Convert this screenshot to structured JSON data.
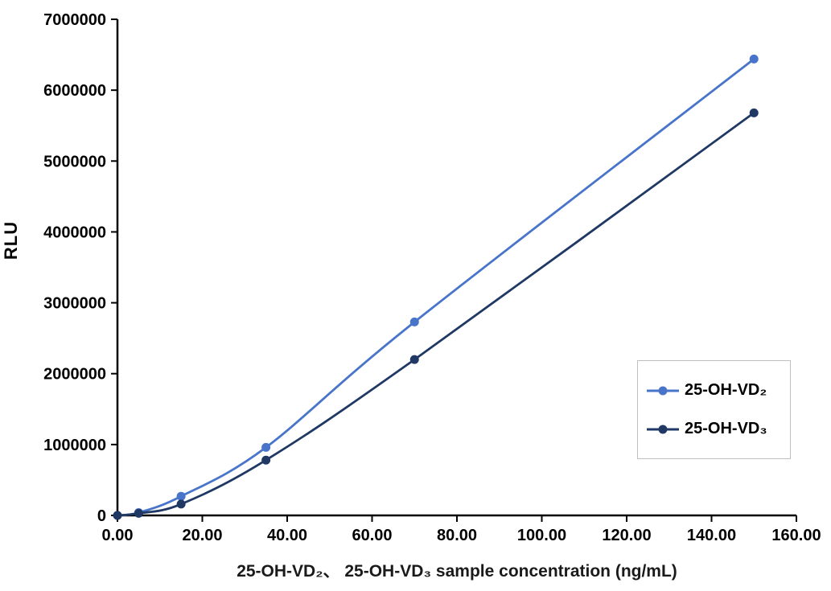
{
  "chart_data": {
    "type": "line",
    "title": "",
    "xlabel": "25-OH-VD₂、 25-OH-VD₃ sample concentration (ng/mL)",
    "ylabel": "RLU",
    "xlim": [
      0,
      160
    ],
    "ylim": [
      0,
      7000000
    ],
    "x_tick_values": [
      0,
      20,
      40,
      60,
      80,
      100,
      120,
      140,
      160
    ],
    "x_tick_labels": [
      "0.00",
      "20.00",
      "40.00",
      "60.00",
      "80.00",
      "100.00",
      "120.00",
      "140.00",
      "160.00"
    ],
    "y_tick_values": [
      0,
      1000000,
      2000000,
      3000000,
      4000000,
      5000000,
      6000000,
      7000000
    ],
    "y_tick_labels": [
      "0",
      "1000000",
      "2000000",
      "3000000",
      "4000000",
      "5000000",
      "6000000",
      "7000000"
    ],
    "x": [
      0,
      5,
      15,
      35,
      70,
      150
    ],
    "series": [
      {
        "name": "25-OH-VD₂",
        "color": "#4874C9",
        "values": [
          0,
          40000,
          270000,
          960000,
          2730000,
          6440000
        ]
      },
      {
        "name": "25-OH-VD₃",
        "color": "#1F3864",
        "values": [
          0,
          30000,
          160000,
          780000,
          2200000,
          5680000
        ]
      }
    ],
    "grid": false,
    "legend_position": "right-middle",
    "smooth_lines": true
  },
  "colors": {
    "background": "#FFFFFF",
    "axis": "#000000",
    "tick_label": "#000000",
    "legend_border": "#BFBFBF",
    "series_vd2": "#4874C9",
    "series_vd3": "#1F3864"
  }
}
